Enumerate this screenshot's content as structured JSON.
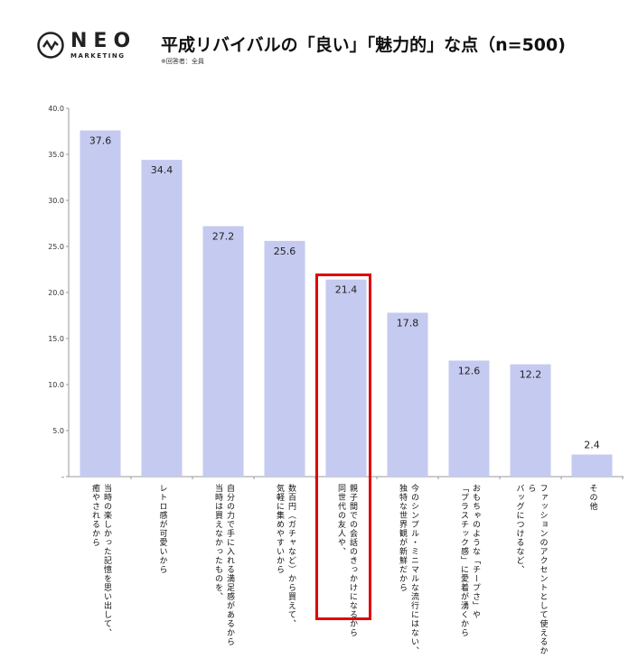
{
  "logo": {
    "main": "NEO",
    "sub": "MARKETING"
  },
  "header": {
    "title": "平成リバイバルの「良い」「魅力的」な点（n=500)",
    "subtitle": "※回答者：全員"
  },
  "chart_data": {
    "type": "bar",
    "categories": [
      "当時の楽しかった記憶を思い出して、\n癒やされるから",
      "レトロ感が可愛いから",
      "自分の力で手に入れる満足感があるから\n当時は買えなかったものを、",
      "数百円（ガチャなど）から買えて、\n気軽に集めやすいから",
      "親子間での会話のきっかけになるから\n同世代の友人や、",
      "今のシンプル・ミニマルな流行にはない、\n独特な世界観が新鮮だから",
      "おもちゃのような「チープさ」や\n「プラスチック感」に愛着が湧くから",
      "ファッションのアクセントとして使えるから\nバッグにつけるなど、",
      "その他"
    ],
    "values": [
      37.6,
      34.4,
      27.2,
      25.6,
      21.4,
      17.8,
      12.6,
      12.2,
      2.4
    ],
    "ylim": [
      0,
      40
    ],
    "yticks": [
      "-",
      "5.0",
      "10.0",
      "15.0",
      "20.0",
      "25.0",
      "30.0",
      "35.0",
      "40.0"
    ],
    "bar_color": "#c5caf0",
    "highlight_index": 4,
    "highlight_color": "#e00000",
    "grid": false
  }
}
